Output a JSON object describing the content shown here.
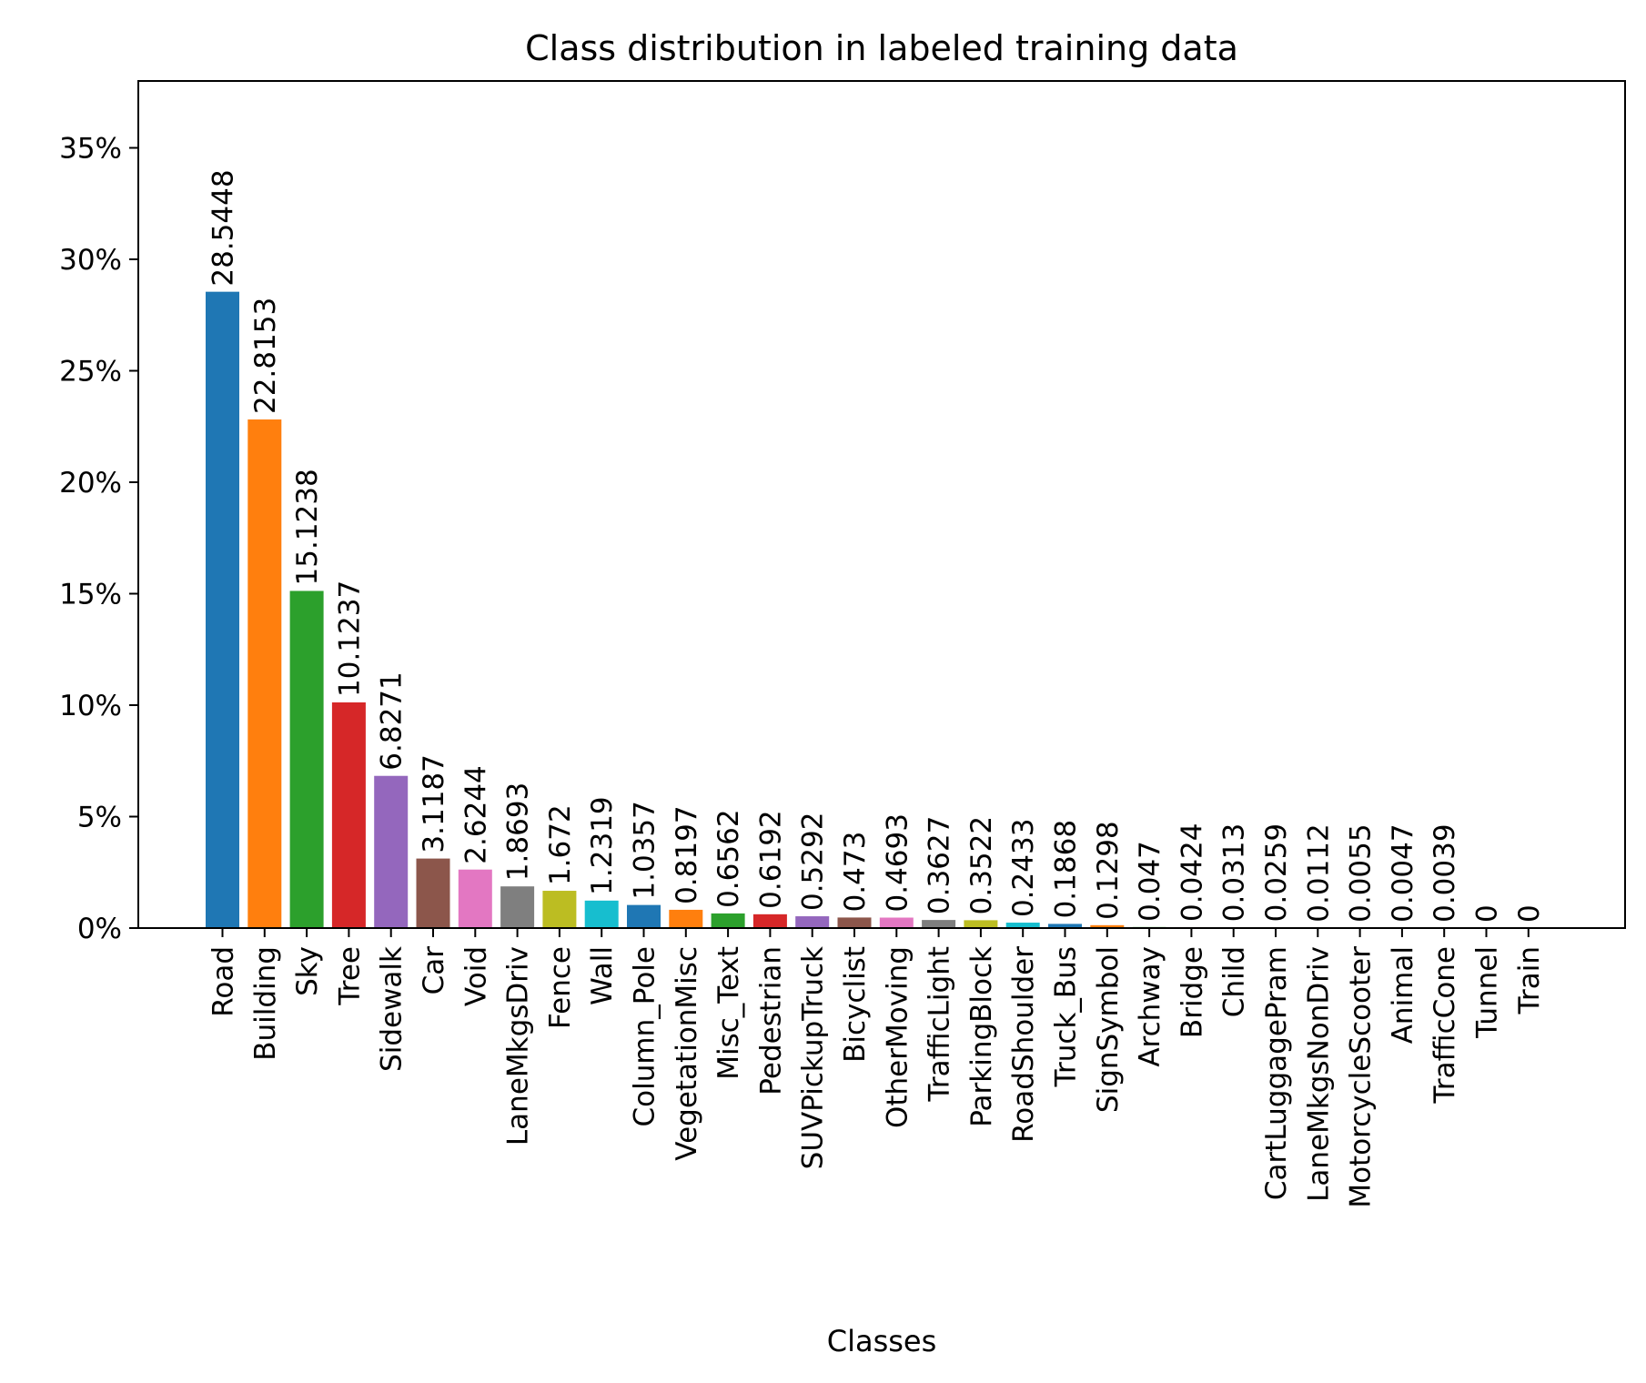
{
  "chart_data": {
    "type": "bar",
    "title": "Class distribution in labeled training data",
    "xlabel": "Classes",
    "ylabel": "",
    "ylim": [
      0,
      38
    ],
    "yticks": [
      0,
      5,
      10,
      15,
      20,
      25,
      30,
      35
    ],
    "ytick_suffix": "%",
    "grid": false,
    "categories": [
      "Road",
      "Building",
      "Sky",
      "Tree",
      "Sidewalk",
      "Car",
      "Void",
      "LaneMkgsDriv",
      "Fence",
      "Wall",
      "Column_Pole",
      "VegetationMisc",
      "Misc_Text",
      "Pedestrian",
      "SUVPickupTruck",
      "Bicyclist",
      "OtherMoving",
      "TrafficLight",
      "ParkingBlock",
      "RoadShoulder",
      "Truck_Bus",
      "SignSymbol",
      "Archway",
      "Bridge",
      "Child",
      "CartLuggagePram",
      "LaneMkgsNonDriv",
      "MotorcycleScooter",
      "Animal",
      "TrafficCone",
      "Tunnel",
      "Train"
    ],
    "values": [
      28.5448,
      22.8153,
      15.1238,
      10.1237,
      6.8271,
      3.1187,
      2.6244,
      1.8693,
      1.672,
      1.2319,
      1.0357,
      0.8197,
      0.6562,
      0.6192,
      0.5292,
      0.473,
      0.4693,
      0.3627,
      0.3522,
      0.2433,
      0.1868,
      0.1298,
      0.047,
      0.0424,
      0.0313,
      0.0259,
      0.0112,
      0.0055,
      0.0047,
      0.0039,
      0,
      0
    ],
    "value_labels": [
      "28.5448",
      "22.8153",
      "15.1238",
      "10.1237",
      "6.8271",
      "3.1187",
      "2.6244",
      "1.8693",
      "1.672",
      "1.2319",
      "1.0357",
      "0.8197",
      "0.6562",
      "0.6192",
      "0.5292",
      "0.473",
      "0.4693",
      "0.3627",
      "0.3522",
      "0.2433",
      "0.1868",
      "0.1298",
      "0.047",
      "0.0424",
      "0.0313",
      "0.0259",
      "0.0112",
      "0.0055",
      "0.0047",
      "0.0039",
      "0",
      "0"
    ],
    "colors": [
      "#1f77b4",
      "#ff7f0e",
      "#2ca02c",
      "#d62728",
      "#9467bd",
      "#8c564b",
      "#e377c2",
      "#7f7f7f",
      "#bcbd22",
      "#17becf"
    ]
  }
}
